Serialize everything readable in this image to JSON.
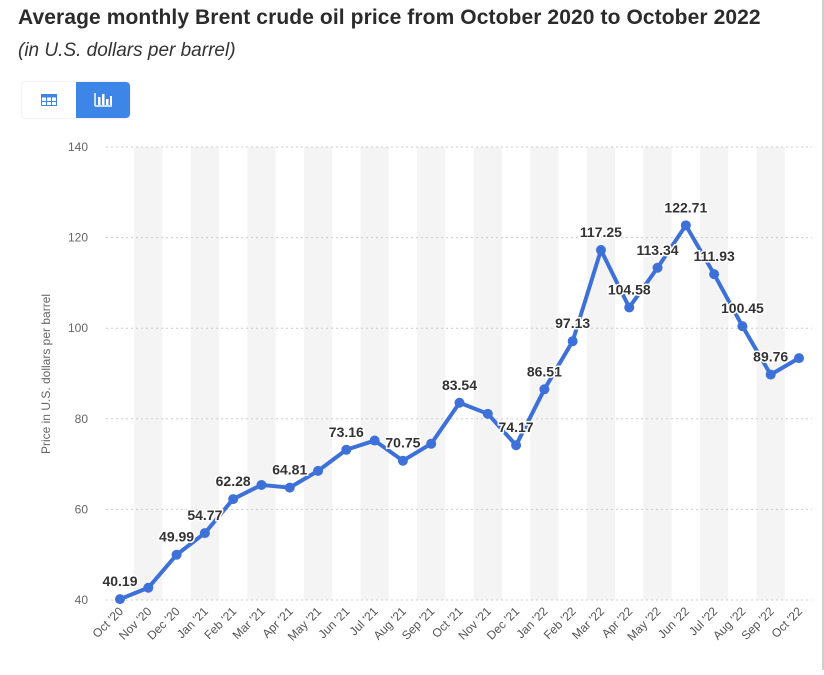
{
  "header": {
    "title": "Average monthly Brent crude oil price from October 2020 to October 2022",
    "subtitle": "(in U.S. dollars per barrel)"
  },
  "toolbar": {
    "table_icon": "table-icon",
    "chart_icon": "bar-chart-icon",
    "active_color": "#3d86e8"
  },
  "chart_data": {
    "type": "line",
    "title": "Average monthly Brent crude oil price from October 2020 to October 2022",
    "subtitle": "(in U.S. dollars per barrel)",
    "xlabel": "",
    "ylabel": "Price in U.S. dollars per barrel",
    "ylim": [
      40,
      140
    ],
    "yticks": [
      40,
      60,
      80,
      100,
      120,
      140
    ],
    "grid": true,
    "line_color": "#3d71d9",
    "categories": [
      "Oct '20",
      "Nov '20",
      "Dec '20",
      "Jan '21",
      "Feb '21",
      "Mar '21",
      "Apr '21",
      "May '21",
      "Jun '21",
      "Jul '21",
      "Aug '21",
      "Sep '21",
      "Oct '21",
      "Nov '21",
      "Dec '21",
      "Jan '22",
      "Feb '22",
      "Mar '22",
      "Apr '22",
      "May '22",
      "Jun '22",
      "Jul '22",
      "Aug '22",
      "Sep '22",
      "Oct '22"
    ],
    "series": [
      {
        "name": "Brent crude oil price",
        "values": [
          40.19,
          42.7,
          49.99,
          54.77,
          62.28,
          65.4,
          64.81,
          68.5,
          73.16,
          75.2,
          70.75,
          74.5,
          83.54,
          81.1,
          74.17,
          86.51,
          97.13,
          117.25,
          104.58,
          113.34,
          122.71,
          111.93,
          100.45,
          89.76,
          93.4
        ]
      }
    ],
    "data_labels": [
      {
        "index": 0,
        "text": "40.19"
      },
      {
        "index": 2,
        "text": "49.99"
      },
      {
        "index": 3,
        "text": "54.77"
      },
      {
        "index": 4,
        "text": "62.28"
      },
      {
        "index": 6,
        "text": "64.81"
      },
      {
        "index": 8,
        "text": "73.16"
      },
      {
        "index": 10,
        "text": "70.75"
      },
      {
        "index": 12,
        "text": "83.54"
      },
      {
        "index": 14,
        "text": "74.17"
      },
      {
        "index": 15,
        "text": "86.51"
      },
      {
        "index": 16,
        "text": "97.13"
      },
      {
        "index": 17,
        "text": "117.25"
      },
      {
        "index": 18,
        "text": "104.58"
      },
      {
        "index": 19,
        "text": "113.34"
      },
      {
        "index": 20,
        "text": "122.71"
      },
      {
        "index": 21,
        "text": "111.93"
      },
      {
        "index": 22,
        "text": "100.45"
      },
      {
        "index": 23,
        "text": "89.76"
      }
    ]
  }
}
